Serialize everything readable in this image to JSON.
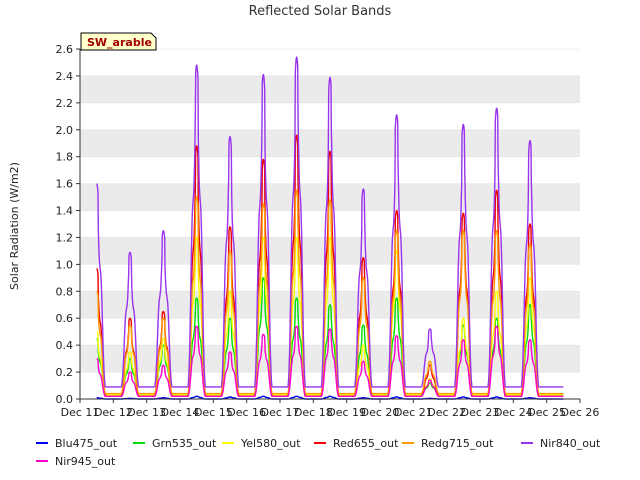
{
  "chart_data": {
    "type": "line",
    "title": "Reflected Solar Bands",
    "ylabel": "Solar Radiation (W/m2)",
    "xlabel": "",
    "badge": "SW_arable",
    "xlim": [
      11,
      26
    ],
    "ylim": [
      0,
      2.6
    ],
    "x_ticks": [
      11,
      12,
      13,
      14,
      15,
      16,
      17,
      18,
      19,
      20,
      21,
      22,
      23,
      24,
      25,
      26
    ],
    "x_tick_labels": [
      "Dec 11",
      "Dec 12",
      "Dec 13",
      "Dec 14",
      "Dec 15",
      "Dec 16",
      "Dec 17",
      "Dec 18",
      "Dec 19",
      "Dec 20",
      "Dec 21",
      "Dec 22",
      "Dec 23",
      "Dec 24",
      "Dec 25",
      "Dec 26"
    ],
    "y_ticks": [
      0.0,
      0.2,
      0.4,
      0.6,
      0.8,
      1.0,
      1.2,
      1.4,
      1.6,
      1.8,
      2.0,
      2.2,
      2.4,
      2.6
    ],
    "y_tick_labels": [
      "0.0",
      "0.2",
      "0.4",
      "0.6",
      "0.8",
      "1.0",
      "1.2",
      "1.4",
      "1.6",
      "1.8",
      "2.0",
      "2.2",
      "2.4",
      "2.6"
    ],
    "grid": "horizontal bands",
    "legend_position": "bottom",
    "series": [
      {
        "name": "Blu475_out",
        "color": "#0000ee",
        "night": 0.0,
        "peaks": [
          0.01,
          0.005,
          0.01,
          0.02,
          0.015,
          0.02,
          0.02,
          0.02,
          0.01,
          0.015,
          0.005,
          0.015,
          0.015,
          0.01
        ]
      },
      {
        "name": "Grn535_out",
        "color": "#00dd00",
        "night": 0.03,
        "peaks": [
          0.45,
          0.3,
          0.4,
          0.75,
          0.6,
          0.9,
          0.75,
          0.7,
          0.55,
          0.75,
          0.12,
          0.55,
          0.6,
          0.7
        ]
      },
      {
        "name": "Yel580_out",
        "color": "#ffff00",
        "night": 0.03,
        "peaks": [
          0.5,
          0.35,
          0.45,
          1.2,
          0.8,
          1.2,
          1.2,
          1.2,
          0.4,
          1.1,
          0.15,
          0.6,
          0.8,
          0.9
        ]
      },
      {
        "name": "Red655_out",
        "color": "#ee0000",
        "night": 0.02,
        "peaks": [
          0.97,
          0.6,
          0.65,
          1.88,
          1.28,
          1.78,
          1.96,
          1.84,
          1.05,
          1.4,
          0.25,
          1.38,
          1.55,
          1.3
        ]
      },
      {
        "name": "Redg715_out",
        "color": "#ff9900",
        "night": 0.04,
        "peaks": [
          0.8,
          0.55,
          0.6,
          1.5,
          1.1,
          1.45,
          1.55,
          1.48,
          0.9,
          1.25,
          0.28,
          1.25,
          1.25,
          1.15
        ]
      },
      {
        "name": "Nir840_out",
        "color": "#9933ee",
        "night": 0.09,
        "peaks": [
          1.6,
          1.09,
          1.25,
          2.48,
          1.95,
          2.41,
          2.54,
          2.39,
          1.56,
          2.11,
          0.52,
          2.04,
          2.16,
          1.92
        ]
      },
      {
        "name": "Nir945_out",
        "color": "#ff00cc",
        "night": 0.02,
        "peaks": [
          0.3,
          0.2,
          0.25,
          0.54,
          0.35,
          0.48,
          0.54,
          0.52,
          0.28,
          0.47,
          0.14,
          0.44,
          0.54,
          0.44
        ]
      }
    ],
    "day_centers": [
      11.5,
      12.5,
      13.5,
      14.5,
      15.5,
      16.5,
      17.5,
      18.5,
      19.5,
      20.5,
      21.5,
      22.5,
      23.5,
      24.5
    ],
    "x_end": 25.5
  }
}
